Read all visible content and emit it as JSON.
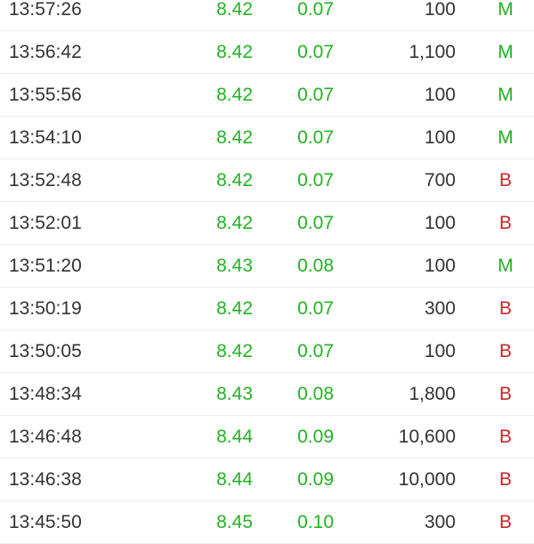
{
  "colors": {
    "up": "#22b322",
    "buy": "#c8262b",
    "text": "#333333"
  },
  "trades": [
    {
      "time": "13:57:26",
      "price": "8.42",
      "change": "0.07",
      "volume": "100",
      "side": "M"
    },
    {
      "time": "13:56:42",
      "price": "8.42",
      "change": "0.07",
      "volume": "1,100",
      "side": "M"
    },
    {
      "time": "13:55:56",
      "price": "8.42",
      "change": "0.07",
      "volume": "100",
      "side": "M"
    },
    {
      "time": "13:54:10",
      "price": "8.42",
      "change": "0.07",
      "volume": "100",
      "side": "M"
    },
    {
      "time": "13:52:48",
      "price": "8.42",
      "change": "0.07",
      "volume": "700",
      "side": "B"
    },
    {
      "time": "13:52:01",
      "price": "8.42",
      "change": "0.07",
      "volume": "100",
      "side": "B"
    },
    {
      "time": "13:51:20",
      "price": "8.43",
      "change": "0.08",
      "volume": "100",
      "side": "M"
    },
    {
      "time": "13:50:19",
      "price": "8.42",
      "change": "0.07",
      "volume": "300",
      "side": "B"
    },
    {
      "time": "13:50:05",
      "price": "8.42",
      "change": "0.07",
      "volume": "100",
      "side": "B"
    },
    {
      "time": "13:48:34",
      "price": "8.43",
      "change": "0.08",
      "volume": "1,800",
      "side": "B"
    },
    {
      "time": "13:46:48",
      "price": "8.44",
      "change": "0.09",
      "volume": "10,600",
      "side": "B"
    },
    {
      "time": "13:46:38",
      "price": "8.44",
      "change": "0.09",
      "volume": "10,000",
      "side": "B"
    },
    {
      "time": "13:45:50",
      "price": "8.45",
      "change": "0.10",
      "volume": "300",
      "side": "B"
    }
  ]
}
